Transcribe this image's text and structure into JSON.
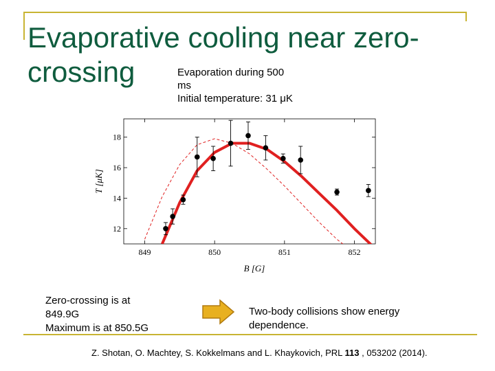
{
  "slide": {
    "title_line1": "Evaporative cooling near zero-",
    "title_line2": "crossing",
    "subtitle": "Evaporation during 500\nms\nInitial temperature: 31 μK",
    "note_left_line1": "Zero-crossing is at",
    "note_left_line2": "849.9G",
    "note_left_line3": "Maximum is at 850.5G",
    "note_right": "Two-body collisions show energy dependence.",
    "citation_pre": "Z. Shotan, O. Machtey, S. Kokkelmans and L. Khaykovich, PRL ",
    "citation_bold": "113",
    "citation_post": " , 053202 (2014).",
    "accent_color": "#0f5c3e",
    "rule_color": "#c8b432",
    "arrow_color": "#e8b020",
    "arrow_icon": "arrow-right-icon"
  },
  "chart_data": {
    "type": "scatter",
    "xlabel": "B [G]",
    "ylabel": "T [μK]",
    "xlim": [
      848.7,
      852.3
    ],
    "ylim": [
      11,
      19.2
    ],
    "xticks": [
      849,
      850,
      851,
      852
    ],
    "yticks": [
      12,
      14,
      16,
      18
    ],
    "points": [
      {
        "x": 849.3,
        "y": 12.0,
        "err": 0.4
      },
      {
        "x": 849.4,
        "y": 12.8,
        "err": 0.5
      },
      {
        "x": 849.55,
        "y": 13.9,
        "err": 0.3
      },
      {
        "x": 849.75,
        "y": 16.7,
        "err": 1.3
      },
      {
        "x": 849.98,
        "y": 16.6,
        "err": 0.8
      },
      {
        "x": 850.23,
        "y": 17.6,
        "err": 1.5
      },
      {
        "x": 850.48,
        "y": 18.1,
        "err": 0.9
      },
      {
        "x": 850.73,
        "y": 17.3,
        "err": 0.8
      },
      {
        "x": 850.98,
        "y": 16.6,
        "err": 0.3
      },
      {
        "x": 851.23,
        "y": 16.5,
        "err": 0.9
      },
      {
        "x": 851.75,
        "y": 14.4,
        "err": 0.2
      },
      {
        "x": 852.2,
        "y": 14.5,
        "err": 0.4
      }
    ],
    "series": [
      {
        "style": "solid",
        "color": "#e02020",
        "x": [
          849.25,
          849.5,
          849.75,
          850.0,
          850.25,
          850.5,
          850.75,
          851.0,
          851.25,
          851.5,
          851.75,
          852.0,
          852.25,
          852.3
        ],
        "y": [
          11.0,
          13.7,
          15.8,
          17.0,
          17.6,
          17.6,
          17.2,
          16.4,
          15.4,
          14.3,
          13.2,
          12.0,
          10.9,
          10.7
        ]
      },
      {
        "style": "dashed",
        "color": "#e02020",
        "x": [
          849.0,
          849.25,
          849.5,
          849.75,
          850.0,
          850.25,
          850.5,
          850.75,
          851.0,
          851.25,
          851.5,
          851.75,
          852.0
        ],
        "y": [
          11.3,
          14.1,
          16.2,
          17.5,
          17.9,
          17.6,
          16.9,
          15.9,
          14.8,
          13.6,
          12.4,
          11.3,
          10.4
        ]
      }
    ],
    "grid": false
  }
}
